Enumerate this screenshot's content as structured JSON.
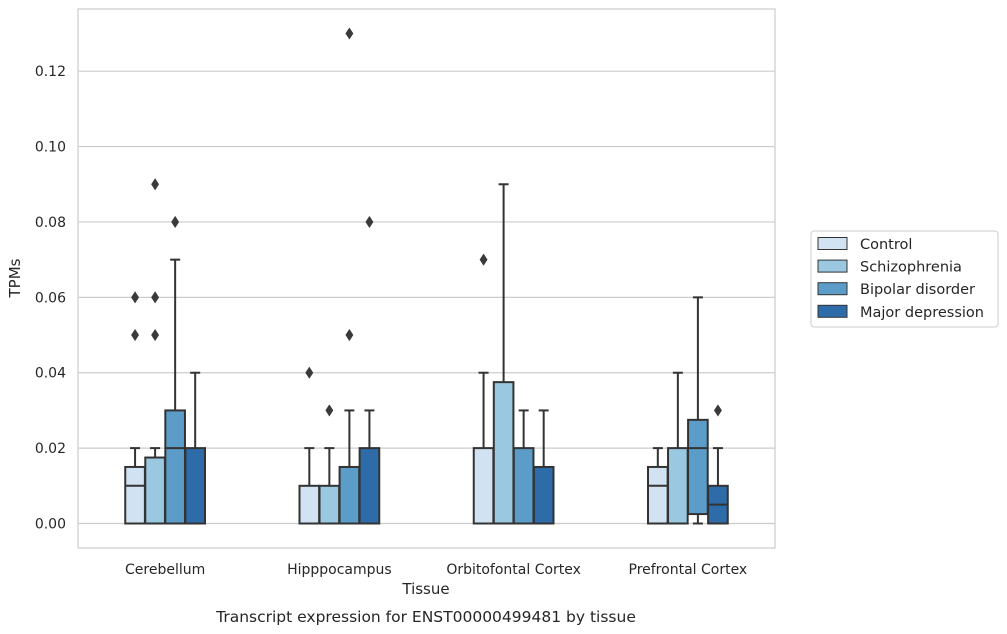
{
  "chart_data": {
    "type": "boxplot",
    "caption": "Transcript expression for ENST00000499481 by tissue",
    "xlabel": "Tissue",
    "ylabel": "TPMs",
    "ylim": [
      -0.0065,
      0.1365
    ],
    "yticks": [
      "0.00",
      "0.02",
      "0.04",
      "0.06",
      "0.08",
      "0.10",
      "0.12"
    ],
    "grid": "horizontal",
    "legend_position": "right",
    "categories": [
      "Cerebellum",
      "Hipppocampus",
      "Orbitofontal Cortex",
      "Prefrontal Cortex"
    ],
    "series": [
      {
        "name": "Control",
        "color": "#d1e2f2",
        "boxes": [
          {
            "whislo": 0,
            "q1": 0,
            "med": 0.01,
            "q3": 0.015,
            "whishi": 0.02,
            "fliers": [
              0.05,
              0.06
            ]
          },
          {
            "whislo": 0,
            "q1": 0,
            "med": 0,
            "q3": 0.01,
            "whishi": 0.02,
            "fliers": [
              0.04
            ]
          },
          {
            "whislo": 0,
            "q1": 0,
            "med": 0,
            "q3": 0.02,
            "whishi": 0.04,
            "fliers": [
              0.07
            ]
          },
          {
            "whislo": 0,
            "q1": 0,
            "med": 0.01,
            "q3": 0.015,
            "whishi": 0.02,
            "fliers": []
          }
        ]
      },
      {
        "name": "Schizophrenia",
        "color": "#9ac8e0",
        "boxes": [
          {
            "whislo": 0,
            "q1": 0,
            "med": 0,
            "q3": 0.0175,
            "whishi": 0.02,
            "fliers": [
              0.05,
              0.06,
              0.09
            ]
          },
          {
            "whislo": 0,
            "q1": 0,
            "med": 0,
            "q3": 0.01,
            "whishi": 0.02,
            "fliers": [
              0.03
            ]
          },
          {
            "whislo": 0,
            "q1": 0,
            "med": 0,
            "q3": 0.0375,
            "whishi": 0.09,
            "fliers": []
          },
          {
            "whislo": 0,
            "q1": 0,
            "med": 0,
            "q3": 0.02,
            "whishi": 0.04,
            "fliers": []
          }
        ]
      },
      {
        "name": "Bipolar disorder",
        "color": "#5b9cc9",
        "boxes": [
          {
            "whislo": 0,
            "q1": 0,
            "med": 0.02,
            "q3": 0.03,
            "whishi": 0.07,
            "fliers": [
              0.08
            ]
          },
          {
            "whislo": 0,
            "q1": 0,
            "med": 0,
            "q3": 0.015,
            "whishi": 0.03,
            "fliers": [
              0.05,
              0.13
            ]
          },
          {
            "whislo": 0,
            "q1": 0,
            "med": 0,
            "q3": 0.02,
            "whishi": 0.03,
            "fliers": []
          },
          {
            "whislo": 0,
            "q1": 0.0025,
            "med": 0.02,
            "q3": 0.0275,
            "whishi": 0.06,
            "fliers": []
          }
        ]
      },
      {
        "name": "Major depression",
        "color": "#2d6ca8",
        "boxes": [
          {
            "whislo": 0,
            "q1": 0,
            "med": 0,
            "q3": 0.02,
            "whishi": 0.04,
            "fliers": []
          },
          {
            "whislo": 0,
            "q1": 0,
            "med": 0,
            "q3": 0.02,
            "whishi": 0.03,
            "fliers": [
              0.08
            ]
          },
          {
            "whislo": 0,
            "q1": 0,
            "med": 0,
            "q3": 0.015,
            "whishi": 0.03,
            "fliers": []
          },
          {
            "whislo": 0,
            "q1": 0,
            "med": 0.005,
            "q3": 0.01,
            "whishi": 0.02,
            "fliers": [
              0.03
            ]
          }
        ]
      }
    ]
  },
  "colors": {
    "line": "#333333",
    "grid": "#cccccc",
    "frame": "#cccccc",
    "text": "#262626"
  }
}
